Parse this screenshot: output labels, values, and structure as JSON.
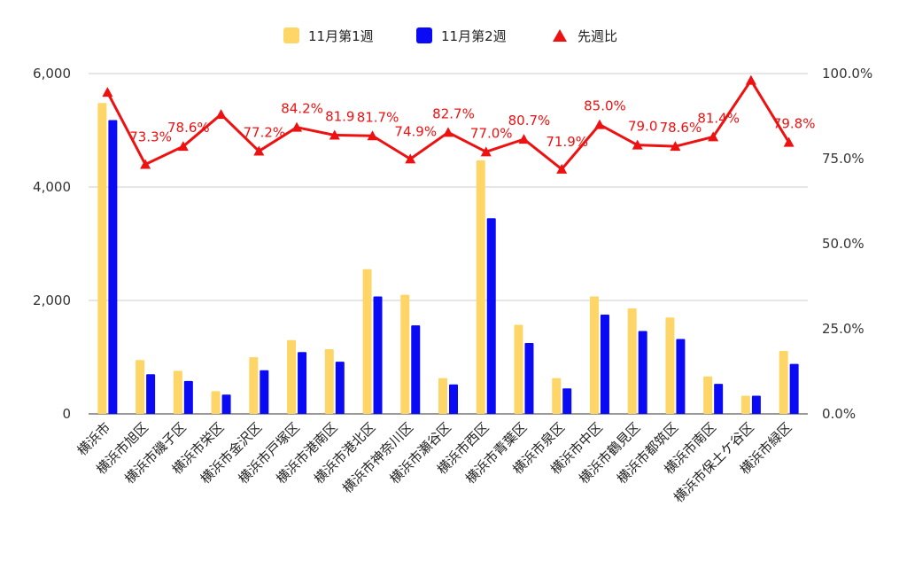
{
  "chart_data": {
    "type": "bar",
    "categories": [
      "横浜市",
      "横浜市旭区",
      "横浜市磯子区",
      "横浜市栄区",
      "横浜市金沢区",
      "横浜市戸塚区",
      "横浜市港南区",
      "横浜市港北区",
      "横浜市神奈川区",
      "横浜市瀬谷区",
      "横浜市西区",
      "横浜市青葉区",
      "横浜市泉区",
      "横浜市中区",
      "横浜市鶴見区",
      "横浜市都筑区",
      "横浜市南区",
      "横浜市保土ケ谷区",
      "横浜市緑区"
    ],
    "series": [
      {
        "name": "11月第1週",
        "type": "bar",
        "axis": "left",
        "color": "#fdd667",
        "values": [
          5480,
          950,
          760,
          400,
          1000,
          1300,
          1140,
          2550,
          2100,
          630,
          4470,
          1570,
          630,
          2070,
          1860,
          1700,
          660,
          320,
          1110
        ]
      },
      {
        "name": "11月第2週",
        "type": "bar",
        "axis": "left",
        "color": "#0a0af5",
        "values": [
          5180,
          700,
          580,
          340,
          770,
          1090,
          920,
          2070,
          1560,
          520,
          3450,
          1250,
          450,
          1750,
          1460,
          1320,
          530,
          320,
          880
        ]
      },
      {
        "name": "先週比",
        "type": "line",
        "axis": "right",
        "color": "#ee1111",
        "values": [
          94.5,
          73.3,
          78.6,
          88.0,
          77.2,
          84.2,
          81.9,
          81.7,
          74.9,
          82.7,
          77.0,
          80.7,
          71.9,
          85.0,
          79.0,
          78.6,
          81.4,
          98.0,
          79.8
        ]
      }
    ],
    "ratio_labels": [
      "",
      "73.3%",
      "78.6%",
      "",
      "77.2%",
      "84.2%",
      "81.9",
      "81.7%",
      "74.9%",
      "82.7%",
      "77.0%",
      "80.7%",
      "71.9%",
      "85.0%",
      "79.0",
      "78.6%",
      "81.4%",
      "",
      "79.8%"
    ],
    "ylim_left": [
      0,
      6000
    ],
    "yticks_left": [
      "0",
      "2,000",
      "4,000",
      "6,000"
    ],
    "ylim_right": [
      0,
      100
    ],
    "yticks_right": [
      "0.0%",
      "25.0%",
      "50.0%",
      "75.0%",
      "100.0%"
    ],
    "grid": true,
    "legend_position": "top-center"
  }
}
